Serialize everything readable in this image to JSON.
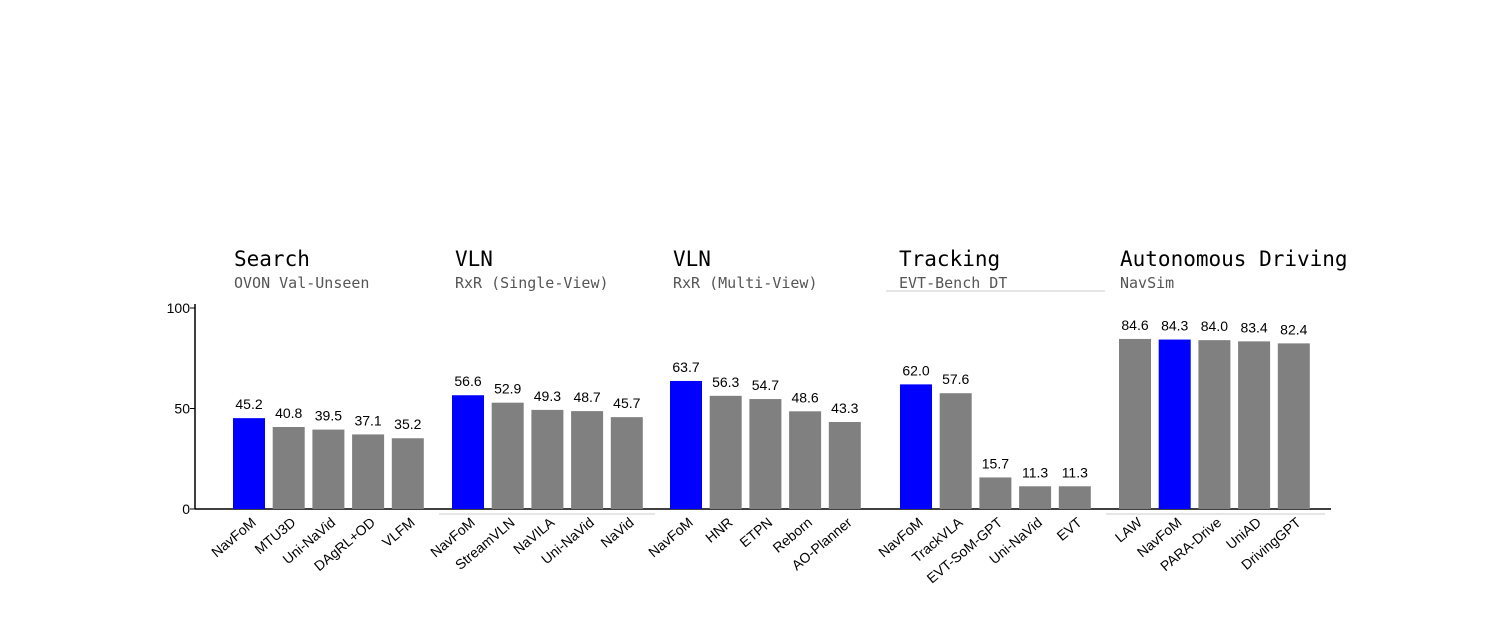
{
  "chart_data": {
    "type": "bar",
    "ylim": [
      0,
      100
    ],
    "yticks": [
      0,
      50,
      100
    ],
    "highlight_color": "#0000ff",
    "bar_color": "#808080",
    "groups": [
      {
        "title": "Search",
        "subtitle": "OVON Val-Unseen",
        "categories": [
          "NavFoM",
          "MTU3D",
          "Uni-NaVid",
          "DAgRL+OD",
          "VLFM"
        ],
        "values": [
          45.2,
          40.8,
          39.5,
          37.1,
          35.2
        ],
        "labels": [
          "45.2",
          "40.8",
          "39.5",
          "37.1",
          "35.2"
        ],
        "highlight": 0
      },
      {
        "title": "VLN",
        "subtitle": "RxR (Single-View)",
        "categories": [
          "NavFoM",
          "StreamVLN",
          "NaVILA",
          "Uni-NaVid",
          "NaVid"
        ],
        "values": [
          56.6,
          52.9,
          49.3,
          48.7,
          45.7
        ],
        "labels": [
          "56.6",
          "52.9",
          "49.3",
          "48.7",
          "45.7"
        ],
        "highlight": 0
      },
      {
        "title": "VLN",
        "subtitle": "RxR (Multi-View)",
        "categories": [
          "NavFoM",
          "HNR",
          "ETPN",
          "Reborn",
          "AO-Planner"
        ],
        "values": [
          63.7,
          56.3,
          54.7,
          48.6,
          43.3
        ],
        "labels": [
          "63.7",
          "56.3",
          "54.7",
          "48.6",
          "43.3"
        ],
        "highlight": 0
      },
      {
        "title": "Tracking",
        "subtitle": "EVT-Bench DT",
        "categories": [
          "NavFoM",
          "TrackVLA",
          "EVT-SoM-GPT",
          "Uni-NaVid",
          "EVT"
        ],
        "values": [
          62.0,
          57.6,
          15.7,
          11.3,
          11.3
        ],
        "labels": [
          "62.0",
          "57.6",
          "15.7",
          "11.3",
          "11.3"
        ],
        "highlight": 0
      },
      {
        "title": "Autonomous Driving",
        "subtitle": "NavSim",
        "categories": [
          "LAW",
          "NavFoM",
          "PARA-Drive",
          "UniAD",
          "DrivingGPT"
        ],
        "values": [
          84.6,
          84.3,
          84.0,
          83.4,
          82.4
        ],
        "labels": [
          "84.6",
          "84.3",
          "84.0",
          "83.4",
          "82.4"
        ],
        "highlight": 1
      }
    ]
  }
}
